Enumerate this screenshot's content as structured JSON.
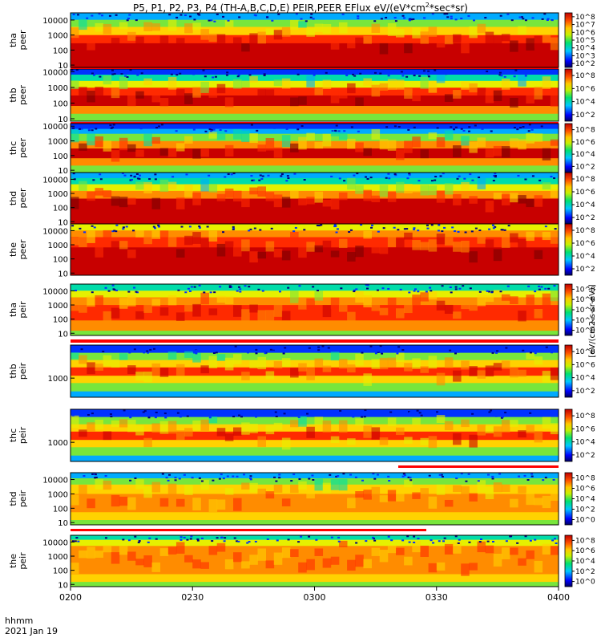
{
  "title": {
    "prefix": "P5, P1, P2, P3, P4 (TH-A,B,C,D,E) PEIR,PEER EFlux eV/(eV*cm",
    "sup": "2",
    "suffix": "*sec*sr)"
  },
  "time_unit_label": "hhmm",
  "date_label": "2021 Jan 19",
  "colorbar_label": "[eV/(cm2-s-sr-eV)]",
  "colors": {
    "background": "#ffffff",
    "frame": "#000000",
    "flag_red": "#ff0000"
  },
  "chart_data": {
    "type": "heatmap",
    "title": "P5, P1, P2, P3, P4 (TH-A,B,C,D,E) PEIR,PEER EFlux eV/(eV*cm2*sec*sr)",
    "x_axis": {
      "label": "hhmm",
      "date": "2021 Jan 19",
      "range": [
        "0200",
        "0400"
      ],
      "tick_labels": [
        "0200",
        "0230",
        "0300",
        "0330",
        "0400"
      ]
    },
    "y_scale": "log",
    "colorbar_scale": "log",
    "colorbar_unit": "[eV/(cm2-s-sr-eV)]",
    "panels": [
      {
        "probe": "tha",
        "species": "peer",
        "ylabel": [
          "tha",
          "peer"
        ],
        "y_ticks": [
          "10",
          "100",
          "1000",
          "10000"
        ],
        "ylim": [
          7,
          30000
        ],
        "cbar_ticks": [
          "10^2",
          "10^3",
          "10^4",
          "10^5",
          "10^6",
          "10^7",
          "10^8"
        ]
      },
      {
        "probe": "thb",
        "species": "peer",
        "ylabel": [
          "thb",
          "peer"
        ],
        "y_ticks": [
          "10",
          "100",
          "1000",
          "10000"
        ],
        "ylim": [
          7,
          15000
        ],
        "cbar_ticks": [
          "10^2",
          "10^4",
          "10^6",
          "10^8"
        ]
      },
      {
        "probe": "thc",
        "species": "peer",
        "ylabel": [
          "thc",
          "peer"
        ],
        "y_ticks": [
          "10",
          "100",
          "1000",
          "10000"
        ],
        "ylim": [
          7,
          15000
        ],
        "cbar_ticks": [
          "10^2",
          "10^4",
          "10^6",
          "10^8"
        ]
      },
      {
        "probe": "thd",
        "species": "peer",
        "ylabel": [
          "thd",
          "peer"
        ],
        "y_ticks": [
          "10",
          "100",
          "1000",
          "10000"
        ],
        "ylim": [
          7,
          30000
        ],
        "cbar_ticks": [
          "10^2",
          "10^4",
          "10^6",
          "10^8"
        ]
      },
      {
        "probe": "the",
        "species": "peer",
        "ylabel": [
          "the",
          "peer"
        ],
        "y_ticks": [
          "10",
          "100",
          "1000",
          "10000"
        ],
        "ylim": [
          7,
          30000
        ],
        "cbar_ticks": [
          "10^2",
          "10^4",
          "10^6",
          "10^8"
        ]
      },
      {
        "probe": "tha",
        "species": "peir",
        "ylabel": [
          "tha",
          "peir"
        ],
        "y_ticks": [
          "10",
          "100",
          "1000",
          "10000"
        ],
        "ylim": [
          7,
          30000
        ],
        "cbar_ticks": [
          "10^0",
          "10^2",
          "10^4",
          "10^6",
          "10^8"
        ]
      },
      {
        "probe": "thb",
        "species": "peir",
        "ylabel": [
          "thb",
          "peir"
        ],
        "y_ticks": [
          "1000"
        ],
        "ylim": [
          300,
          8000
        ],
        "cbar_ticks": [
          "10^2",
          "10^4",
          "10^6",
          "10^8"
        ]
      },
      {
        "probe": "thc",
        "species": "peir",
        "ylabel": [
          "thc",
          "peir"
        ],
        "y_ticks": [
          "1000"
        ],
        "ylim": [
          300,
          8000
        ],
        "cbar_ticks": [
          "10^2",
          "10^4",
          "10^6",
          "10^8"
        ]
      },
      {
        "probe": "thd",
        "species": "peir",
        "ylabel": [
          "thd",
          "peir"
        ],
        "y_ticks": [
          "10",
          "100",
          "1000",
          "10000"
        ],
        "ylim": [
          7,
          30000
        ],
        "cbar_ticks": [
          "10^0",
          "10^2",
          "10^4",
          "10^6",
          "10^8"
        ]
      },
      {
        "probe": "the",
        "species": "peir",
        "ylabel": [
          "the",
          "peir"
        ],
        "y_ticks": [
          "10",
          "100",
          "1000",
          "10000"
        ],
        "ylim": [
          7,
          30000
        ],
        "cbar_ticks": [
          "10^0",
          "10^2",
          "10^4",
          "10^6",
          "10^8"
        ]
      }
    ]
  }
}
